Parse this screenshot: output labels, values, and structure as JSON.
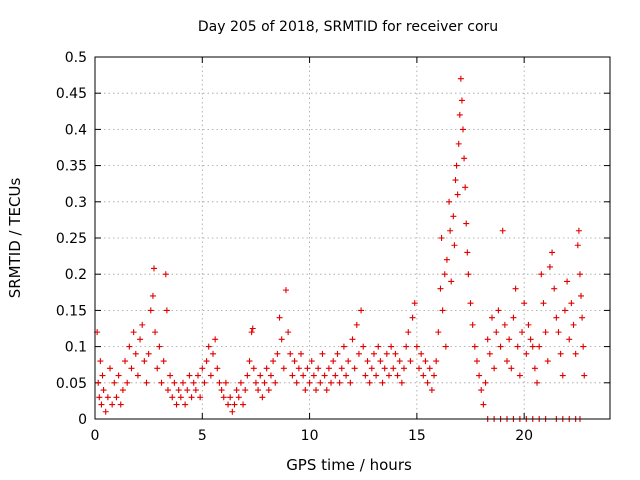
{
  "chart_data": {
    "type": "scatter",
    "title": "Day 205 of 2018, SRMTID for receiver coru",
    "xlabel": "GPS time / hours",
    "ylabel": "SRMTID / TECUs",
    "xlim": [
      0,
      24
    ],
    "ylim": [
      0,
      0.5
    ],
    "xticks": [
      0,
      5,
      10,
      15,
      20
    ],
    "xtick_labels": [
      "0",
      "5",
      "10",
      "15",
      "20"
    ],
    "yticks": [
      0,
      0.05,
      0.1,
      0.15,
      0.2,
      0.25,
      0.3,
      0.35,
      0.4,
      0.45,
      0.5
    ],
    "ytick_labels": [
      "0",
      "0.05",
      "0.1",
      "0.15",
      "0.2",
      "0.25",
      "0.3",
      "0.35",
      "0.4",
      "0.45",
      "0.5"
    ],
    "grid": true,
    "marker": "plus",
    "color": "#e00000",
    "series": [
      {
        "name": "SRMTID",
        "points": [
          [
            0.1,
            0.12
          ],
          [
            0.15,
            0.05
          ],
          [
            0.2,
            0.03
          ],
          [
            0.25,
            0.08
          ],
          [
            0.3,
            0.02
          ],
          [
            0.35,
            0.06
          ],
          [
            0.4,
            0.04
          ],
          [
            0.5,
            0.01
          ],
          [
            0.6,
            0.03
          ],
          [
            0.7,
            0.07
          ],
          [
            0.8,
            0.02
          ],
          [
            0.9,
            0.05
          ],
          [
            1.0,
            0.03
          ],
          [
            1.1,
            0.06
          ],
          [
            1.2,
            0.02
          ],
          [
            1.3,
            0.04
          ],
          [
            1.4,
            0.08
          ],
          [
            1.5,
            0.05
          ],
          [
            1.6,
            0.1
          ],
          [
            1.7,
            0.07
          ],
          [
            1.8,
            0.12
          ],
          [
            1.9,
            0.09
          ],
          [
            2.0,
            0.06
          ],
          [
            2.1,
            0.11
          ],
          [
            2.2,
            0.13
          ],
          [
            2.3,
            0.08
          ],
          [
            2.4,
            0.05
          ],
          [
            2.5,
            0.09
          ],
          [
            2.6,
            0.15
          ],
          [
            2.7,
            0.17
          ],
          [
            2.75,
            0.208
          ],
          [
            2.8,
            0.12
          ],
          [
            2.9,
            0.07
          ],
          [
            3.0,
            0.1
          ],
          [
            3.1,
            0.05
          ],
          [
            3.2,
            0.08
          ],
          [
            3.3,
            0.2
          ],
          [
            3.35,
            0.15
          ],
          [
            3.4,
            0.04
          ],
          [
            3.5,
            0.06
          ],
          [
            3.6,
            0.03
          ],
          [
            3.7,
            0.05
          ],
          [
            3.8,
            0.02
          ],
          [
            3.9,
            0.04
          ],
          [
            4.0,
            0.03
          ],
          [
            4.1,
            0.05
          ],
          [
            4.2,
            0.02
          ],
          [
            4.3,
            0.04
          ],
          [
            4.4,
            0.06
          ],
          [
            4.5,
            0.03
          ],
          [
            4.6,
            0.05
          ],
          [
            4.7,
            0.04
          ],
          [
            4.8,
            0.06
          ],
          [
            4.9,
            0.03
          ],
          [
            5.0,
            0.07
          ],
          [
            5.1,
            0.05
          ],
          [
            5.2,
            0.08
          ],
          [
            5.3,
            0.1
          ],
          [
            5.4,
            0.06
          ],
          [
            5.5,
            0.09
          ],
          [
            5.6,
            0.11
          ],
          [
            5.7,
            0.07
          ],
          [
            5.8,
            0.05
          ],
          [
            5.9,
            0.04
          ],
          [
            6.0,
            0.03
          ],
          [
            6.1,
            0.05
          ],
          [
            6.2,
            0.02
          ],
          [
            6.3,
            0.03
          ],
          [
            6.4,
            0.01
          ],
          [
            6.5,
            0.02
          ],
          [
            6.6,
            0.04
          ],
          [
            6.7,
            0.03
          ],
          [
            6.8,
            0.05
          ],
          [
            6.9,
            0.02
          ],
          [
            7.0,
            0.04
          ],
          [
            7.1,
            0.06
          ],
          [
            7.2,
            0.08
          ],
          [
            7.3,
            0.12
          ],
          [
            7.35,
            0.125
          ],
          [
            7.4,
            0.07
          ],
          [
            7.5,
            0.05
          ],
          [
            7.6,
            0.04
          ],
          [
            7.7,
            0.06
          ],
          [
            7.8,
            0.03
          ],
          [
            7.9,
            0.05
          ],
          [
            8.0,
            0.07
          ],
          [
            8.1,
            0.04
          ],
          [
            8.2,
            0.06
          ],
          [
            8.3,
            0.08
          ],
          [
            8.4,
            0.05
          ],
          [
            8.5,
            0.09
          ],
          [
            8.6,
            0.14
          ],
          [
            8.7,
            0.11
          ],
          [
            8.8,
            0.07
          ],
          [
            8.9,
            0.178
          ],
          [
            9.0,
            0.12
          ],
          [
            9.1,
            0.09
          ],
          [
            9.2,
            0.06
          ],
          [
            9.3,
            0.08
          ],
          [
            9.4,
            0.05
          ],
          [
            9.5,
            0.07
          ],
          [
            9.6,
            0.09
          ],
          [
            9.7,
            0.06
          ],
          [
            9.8,
            0.04
          ],
          [
            9.9,
            0.07
          ],
          [
            10.0,
            0.05
          ],
          [
            10.1,
            0.08
          ],
          [
            10.2,
            0.06
          ],
          [
            10.3,
            0.04
          ],
          [
            10.4,
            0.07
          ],
          [
            10.5,
            0.05
          ],
          [
            10.6,
            0.09
          ],
          [
            10.7,
            0.06
          ],
          [
            10.8,
            0.04
          ],
          [
            10.9,
            0.07
          ],
          [
            11.0,
            0.05
          ],
          [
            11.1,
            0.08
          ],
          [
            11.2,
            0.06
          ],
          [
            11.3,
            0.09
          ],
          [
            11.4,
            0.05
          ],
          [
            11.5,
            0.07
          ],
          [
            11.6,
            0.1
          ],
          [
            11.7,
            0.06
          ],
          [
            11.8,
            0.08
          ],
          [
            11.9,
            0.05
          ],
          [
            12.0,
            0.11
          ],
          [
            12.1,
            0.07
          ],
          [
            12.2,
            0.13
          ],
          [
            12.3,
            0.09
          ],
          [
            12.4,
            0.15
          ],
          [
            12.5,
            0.1
          ],
          [
            12.6,
            0.06
          ],
          [
            12.7,
            0.08
          ],
          [
            12.8,
            0.05
          ],
          [
            12.9,
            0.07
          ],
          [
            13.0,
            0.09
          ],
          [
            13.1,
            0.06
          ],
          [
            13.2,
            0.1
          ],
          [
            13.3,
            0.08
          ],
          [
            13.4,
            0.05
          ],
          [
            13.5,
            0.07
          ],
          [
            13.6,
            0.09
          ],
          [
            13.7,
            0.06
          ],
          [
            13.8,
            0.1
          ],
          [
            13.9,
            0.07
          ],
          [
            14.0,
            0.09
          ],
          [
            14.1,
            0.06
          ],
          [
            14.2,
            0.08
          ],
          [
            14.3,
            0.05
          ],
          [
            14.4,
            0.07
          ],
          [
            14.5,
            0.1
          ],
          [
            14.6,
            0.12
          ],
          [
            14.7,
            0.08
          ],
          [
            14.8,
            0.14
          ],
          [
            14.9,
            0.16
          ],
          [
            15.0,
            0.1
          ],
          [
            15.1,
            0.07
          ],
          [
            15.2,
            0.09
          ],
          [
            15.3,
            0.06
          ],
          [
            15.4,
            0.08
          ],
          [
            15.5,
            0.05
          ],
          [
            15.6,
            0.07
          ],
          [
            15.7,
            0.04
          ],
          [
            15.8,
            0.06
          ],
          [
            15.9,
            0.08
          ],
          [
            16.0,
            0.12
          ],
          [
            16.1,
            0.18
          ],
          [
            16.15,
            0.25
          ],
          [
            16.2,
            0.15
          ],
          [
            16.3,
            0.2
          ],
          [
            16.35,
            0.1
          ],
          [
            16.4,
            0.22
          ],
          [
            16.5,
            0.3
          ],
          [
            16.55,
            0.26
          ],
          [
            16.6,
            0.19
          ],
          [
            16.7,
            0.28
          ],
          [
            16.75,
            0.24
          ],
          [
            16.8,
            0.33
          ],
          [
            16.85,
            0.35
          ],
          [
            16.9,
            0.31
          ],
          [
            16.95,
            0.38
          ],
          [
            17.0,
            0.42
          ],
          [
            17.05,
            0.47
          ],
          [
            17.1,
            0.44
          ],
          [
            17.15,
            0.4
          ],
          [
            17.2,
            0.36
          ],
          [
            17.25,
            0.32
          ],
          [
            17.3,
            0.27
          ],
          [
            17.35,
            0.23
          ],
          [
            17.4,
            0.2
          ],
          [
            17.5,
            0.16
          ],
          [
            17.6,
            0.13
          ],
          [
            17.7,
            0.1
          ],
          [
            17.8,
            0.08
          ],
          [
            17.9,
            0.06
          ],
          [
            18.0,
            0.04
          ],
          [
            18.1,
            0.02
          ],
          [
            18.2,
            0.05
          ],
          [
            18.3,
            0.11
          ],
          [
            18.4,
            0.09
          ],
          [
            18.5,
            0.14
          ],
          [
            18.6,
            0.07
          ],
          [
            18.7,
            0.12
          ],
          [
            18.8,
            0.15
          ],
          [
            18.9,
            0.1
          ],
          [
            19.0,
            0.26
          ],
          [
            19.1,
            0.13
          ],
          [
            19.2,
            0.08
          ],
          [
            19.3,
            0.11
          ],
          [
            19.4,
            0.07
          ],
          [
            19.5,
            0.14
          ],
          [
            19.6,
            0.18
          ],
          [
            19.7,
            0.1
          ],
          [
            19.8,
            0.06
          ],
          [
            19.9,
            0.12
          ],
          [
            20.0,
            0.16
          ],
          [
            20.1,
            0.09
          ],
          [
            20.2,
            0.13
          ],
          [
            20.3,
            0.11
          ],
          [
            20.4,
            0.1
          ],
          [
            20.5,
            0.07
          ],
          [
            20.6,
            0.05
          ],
          [
            20.7,
            0.1
          ],
          [
            20.8,
            0.2
          ],
          [
            20.9,
            0.16
          ],
          [
            21.0,
            0.12
          ],
          [
            21.1,
            0.08
          ],
          [
            21.2,
            0.21
          ],
          [
            21.3,
            0.23
          ],
          [
            21.4,
            0.18
          ],
          [
            21.5,
            0.14
          ],
          [
            21.6,
            0.12
          ],
          [
            21.7,
            0.09
          ],
          [
            21.8,
            0.06
          ],
          [
            21.9,
            0.15
          ],
          [
            22.0,
            0.19
          ],
          [
            22.1,
            0.11
          ],
          [
            22.2,
            0.16
          ],
          [
            22.3,
            0.13
          ],
          [
            22.4,
            0.09
          ],
          [
            22.5,
            0.24
          ],
          [
            22.55,
            0.26
          ],
          [
            22.6,
            0.2
          ],
          [
            22.65,
            0.17
          ],
          [
            22.7,
            0.14
          ],
          [
            22.75,
            0.1
          ],
          [
            22.8,
            0.06
          ],
          [
            18.3,
            0.0
          ],
          [
            18.6,
            0.0
          ],
          [
            18.9,
            0.0
          ],
          [
            19.2,
            0.0
          ],
          [
            19.5,
            0.0
          ],
          [
            19.8,
            0.0
          ],
          [
            20.1,
            0.0
          ],
          [
            20.4,
            0.0
          ],
          [
            20.7,
            0.0
          ],
          [
            21.0,
            0.0
          ],
          [
            21.5,
            0.0
          ],
          [
            21.8,
            0.0
          ],
          [
            22.1,
            0.0
          ],
          [
            22.4,
            0.0
          ],
          [
            22.6,
            0.0
          ]
        ]
      }
    ]
  }
}
